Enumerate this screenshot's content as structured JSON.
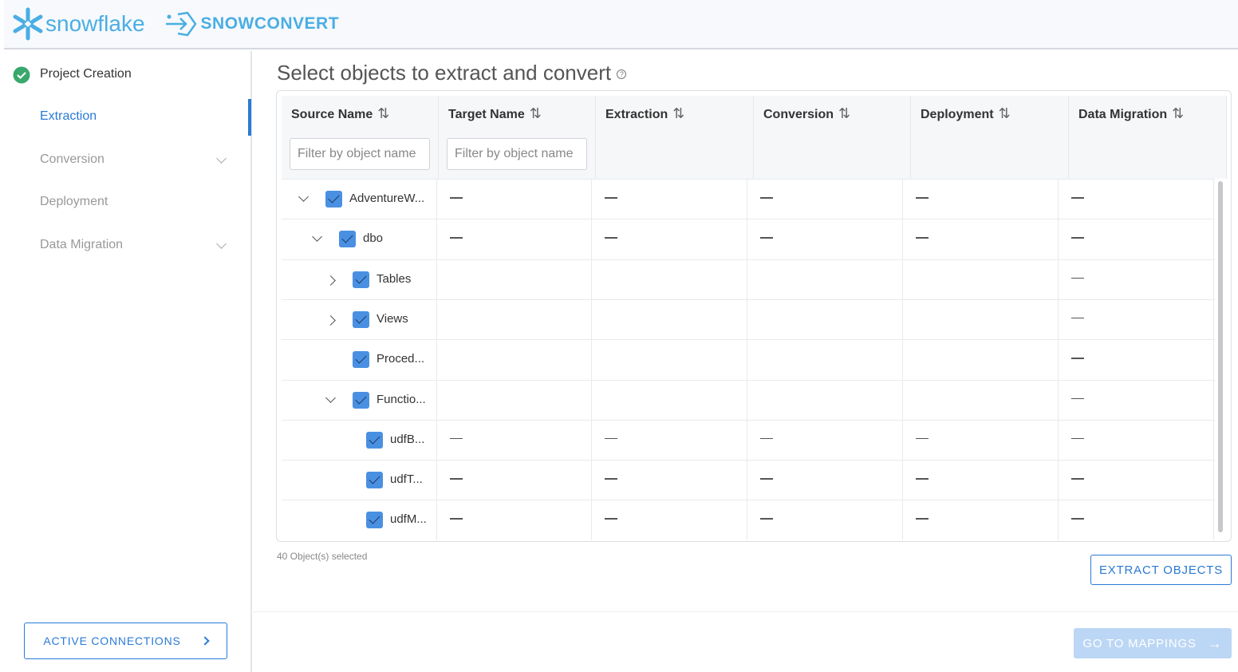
{
  "header": {
    "brand": "snowflake",
    "product": "SNOWCONVERT"
  },
  "sidebar": {
    "steps": [
      {
        "label": "Project Creation",
        "state": "done"
      },
      {
        "label": "Extraction",
        "state": "active"
      },
      {
        "label": "Conversion",
        "state": "disabled",
        "expandable": true
      },
      {
        "label": "Deployment",
        "state": "disabled"
      },
      {
        "label": "Data Migration",
        "state": "disabled",
        "expandable": true
      }
    ],
    "active_connections": "ACTIVE CONNECTIONS"
  },
  "main": {
    "title": "Select objects to extract and convert",
    "columns": [
      "Source Name",
      "Target Name",
      "Extraction",
      "Conversion",
      "Deployment",
      "Data Migration"
    ],
    "filter_placeholder": "Filter by object name",
    "rows": [
      {
        "name": "AdventureW...",
        "level": 0,
        "expander": "down",
        "checked": true,
        "cells": [
          "—",
          "—",
          "—",
          "—",
          "—"
        ]
      },
      {
        "name": "dbo",
        "level": 1,
        "expander": "down",
        "checked": true,
        "cells": [
          "—",
          "—",
          "—",
          "—",
          "—"
        ]
      },
      {
        "name": "Tables",
        "level": 2,
        "expander": "right",
        "checked": true,
        "cells": [
          "",
          "",
          "",
          "",
          "—"
        ]
      },
      {
        "name": "Views",
        "level": 2,
        "expander": "right",
        "checked": true,
        "cells": [
          "",
          "",
          "",
          "",
          "—"
        ]
      },
      {
        "name": "Proced...",
        "level": 2,
        "expander": "none",
        "checked": true,
        "cells": [
          "",
          "",
          "",
          "",
          "—"
        ]
      },
      {
        "name": "Functio...",
        "level": 2,
        "expander": "down",
        "checked": true,
        "cells": [
          "",
          "",
          "",
          "",
          "—"
        ]
      },
      {
        "name": "udfB...",
        "level": 3,
        "expander": "none",
        "checked": true,
        "cells": [
          "—",
          "—",
          "—",
          "—",
          "—"
        ]
      },
      {
        "name": "udfT...",
        "level": 3,
        "expander": "none",
        "checked": true,
        "cells": [
          "—",
          "—",
          "—",
          "—",
          "—"
        ]
      },
      {
        "name": "udfM...",
        "level": 3,
        "expander": "none",
        "checked": true,
        "cells": [
          "—",
          "—",
          "—",
          "—",
          "—"
        ]
      }
    ],
    "selected_count": "40 Object(s) selected",
    "extract_button": "EXTRACT OBJECTS",
    "goto_button": "GO TO MAPPINGS"
  },
  "colors": {
    "accent": "#2a7ad6",
    "checkbox": "#4a90e2",
    "success": "#3aa76d",
    "brand": "#4aaee4"
  }
}
